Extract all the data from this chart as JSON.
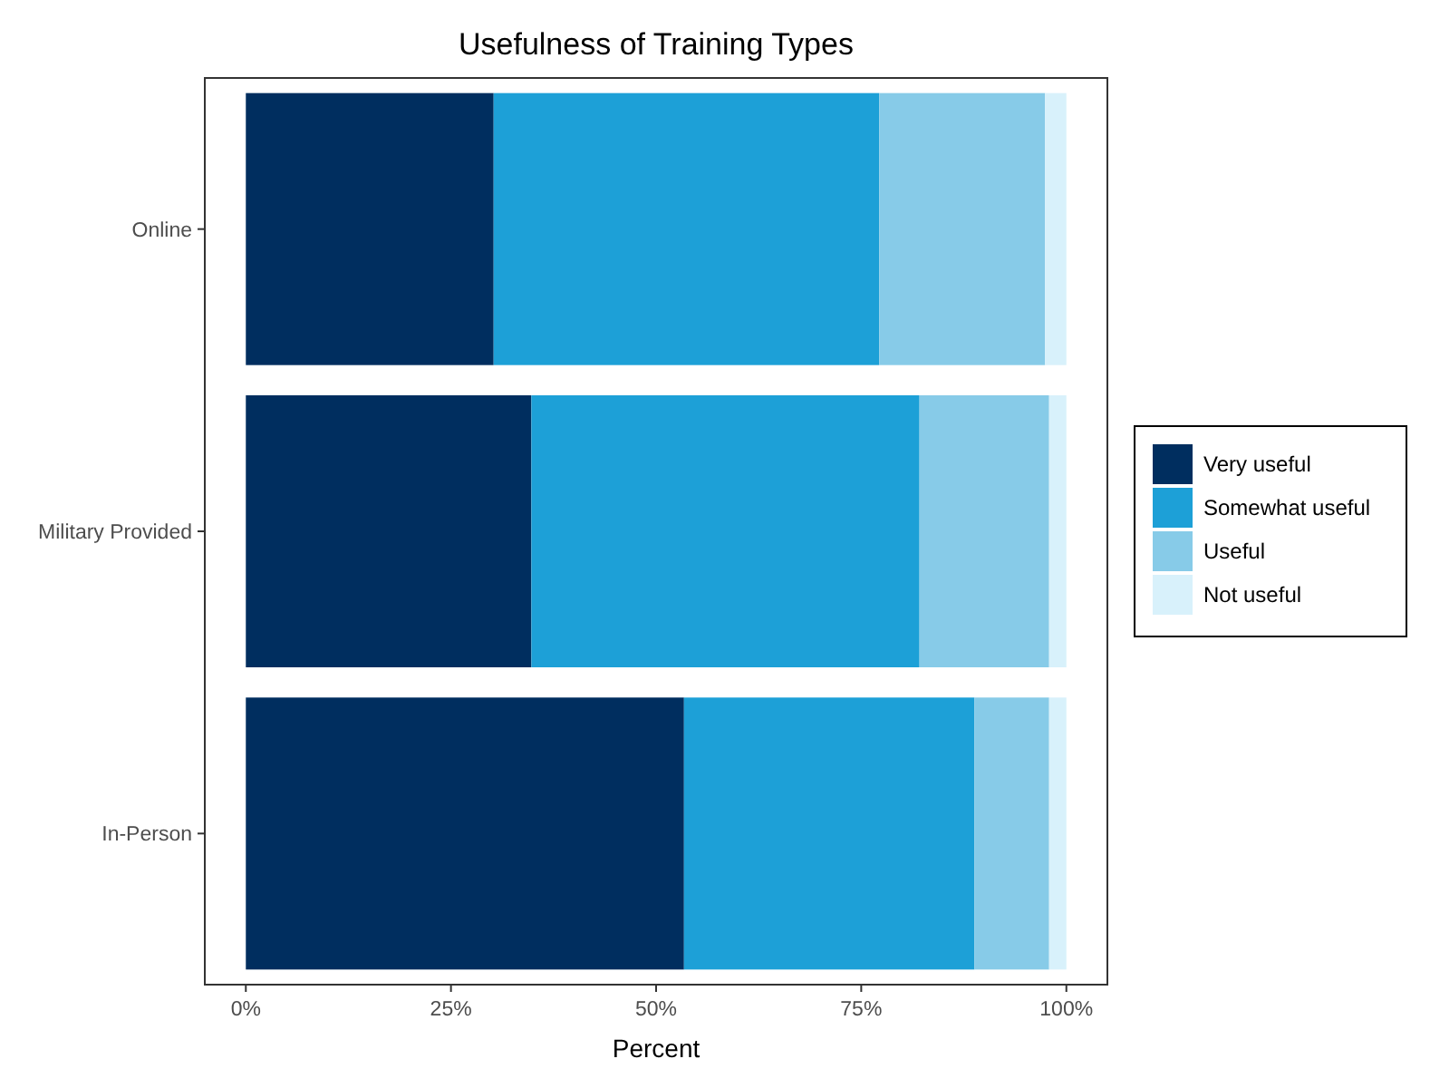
{
  "chart_data": {
    "type": "bar",
    "orientation": "horizontal",
    "stacked": true,
    "title": "Usefulness of Training Types",
    "xlabel": "Percent",
    "categories": [
      "Online",
      "Military Provided",
      "In-Person"
    ],
    "series": [
      {
        "name": "Very useful",
        "color": "#002e5f",
        "values": [
          30.2,
          34.8,
          53.4
        ]
      },
      {
        "name": "Somewhat useful",
        "color": "#1da0d7",
        "values": [
          47.0,
          47.3,
          35.4
        ]
      },
      {
        "name": "Useful",
        "color": "#87cbe8",
        "values": [
          20.2,
          15.8,
          9.1
        ]
      },
      {
        "name": "Not useful",
        "color": "#d8f1fb",
        "values": [
          2.6,
          2.1,
          2.1
        ]
      }
    ],
    "xlim": [
      -5,
      105
    ],
    "xticks": [
      {
        "value": 0,
        "label": "0%"
      },
      {
        "value": 25,
        "label": "25%"
      },
      {
        "value": 50,
        "label": "50%"
      },
      {
        "value": 75,
        "label": "75%"
      },
      {
        "value": 100,
        "label": "100%"
      }
    ],
    "grid": false,
    "legend": "right"
  }
}
